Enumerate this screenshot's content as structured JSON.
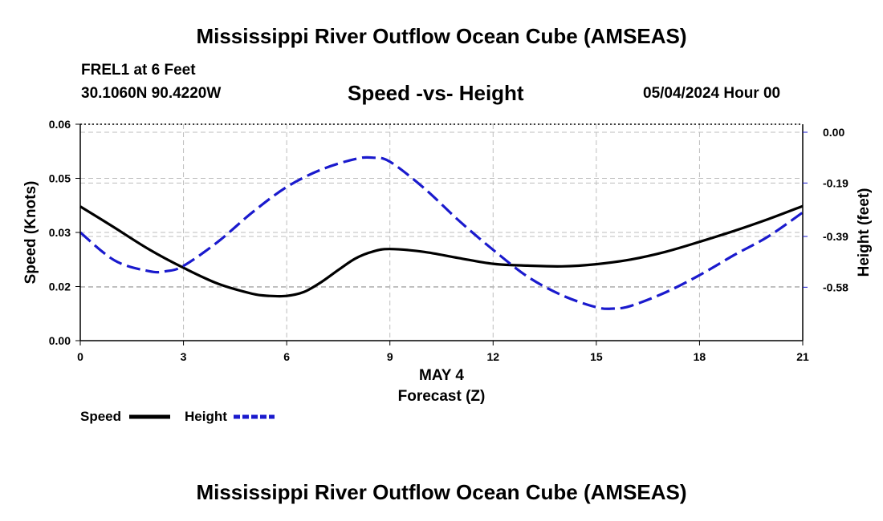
{
  "header": {
    "title": "Mississippi River Outflow Ocean Cube (AMSEAS)",
    "station": "FREL1 at 6 Feet",
    "coords": "30.1060N  90.4220W",
    "date": "05/04/2024 Hour 00"
  },
  "footer": {
    "title": "Mississippi River Outflow Ocean Cube (AMSEAS)"
  },
  "colors": {
    "speed": "#000000",
    "height": "#1a1acd",
    "grid": "#bdbdbd"
  },
  "chart_data": {
    "type": "line",
    "title": "Speed -vs- Height",
    "xlabel": "Forecast (Z)",
    "xlabel_date": "MAY 4",
    "ylabel": "Speed (Knots)",
    "y2label": "Height (feet)",
    "xlim": [
      0,
      21
    ],
    "x_ticks": [
      "0",
      "3",
      "6",
      "9",
      "12",
      "15",
      "18",
      "21"
    ],
    "ylim": [
      0,
      0.06
    ],
    "y_ticks": [
      {
        "value": 0.0,
        "label": "0.00"
      },
      {
        "value": 0.015,
        "label": "0.02"
      },
      {
        "value": 0.03,
        "label": "0.03"
      },
      {
        "value": 0.045,
        "label": "0.05"
      },
      {
        "value": 0.06,
        "label": "0.06"
      }
    ],
    "y2lim": [
      -0.78,
      0.03
    ],
    "y2_ticks": [
      {
        "value": 0.0,
        "label": "0.00"
      },
      {
        "value": -0.19,
        "label": "-0.19"
      },
      {
        "value": -0.39,
        "label": "-0.39"
      },
      {
        "value": -0.58,
        "label": "-0.58"
      }
    ],
    "grid": true,
    "legend_position": "bottom-left",
    "series": [
      {
        "name": "Speed",
        "axis": "left",
        "style": "solid",
        "x": [
          0,
          1,
          2,
          3,
          4,
          5,
          5.5,
          6,
          6.5,
          7,
          7.5,
          8,
          8.5,
          9,
          10,
          11,
          12,
          13,
          14,
          15,
          16,
          17,
          18,
          19,
          20,
          21
        ],
        "values": [
          0.0372,
          0.0313,
          0.0253,
          0.0202,
          0.0158,
          0.013,
          0.0124,
          0.0124,
          0.0135,
          0.0162,
          0.0196,
          0.0228,
          0.0247,
          0.0254,
          0.0246,
          0.0229,
          0.0213,
          0.0208,
          0.0206,
          0.0212,
          0.0225,
          0.0246,
          0.0274,
          0.0304,
          0.0337,
          0.0373
        ]
      },
      {
        "name": "Height",
        "axis": "right",
        "style": "dashed",
        "x": [
          0,
          1,
          2,
          2.5,
          3,
          4,
          5,
          6,
          7,
          8,
          8.5,
          9,
          10,
          11,
          12,
          13,
          14,
          15,
          15.5,
          16,
          17,
          18,
          19,
          20,
          21
        ],
        "values": [
          -0.375,
          -0.48,
          -0.52,
          -0.52,
          -0.5,
          -0.41,
          -0.3,
          -0.205,
          -0.14,
          -0.1,
          -0.095,
          -0.11,
          -0.21,
          -0.33,
          -0.44,
          -0.54,
          -0.61,
          -0.655,
          -0.66,
          -0.65,
          -0.6,
          -0.535,
          -0.46,
          -0.39,
          -0.3
        ]
      }
    ]
  }
}
